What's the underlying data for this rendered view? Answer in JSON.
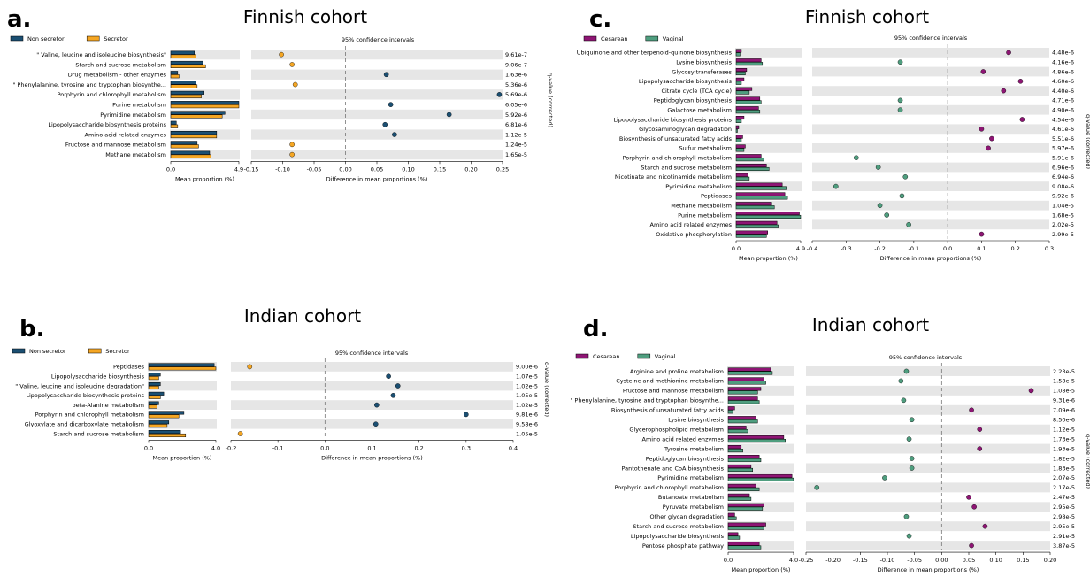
{
  "colors": {
    "non_secretor": "#1b4f72",
    "secretor": "#f5a623",
    "cesarean": "#8e1574",
    "vaginal": "#4f9e7f",
    "band": "#e6e6e6",
    "edge": "#000000"
  },
  "chart_data": [
    {
      "panel": "a.",
      "type": "bar",
      "title": "Finnish cohort",
      "legend": [
        "Non secretor",
        "Secretor"
      ],
      "legend_position": "top-left",
      "categories": [
        "\" Valine, leucine and isoleucine biosynthesis\"",
        "Starch and sucrose metabolism",
        "Drug metabolism - other enzymes",
        "\" Phenylalanine, tyrosine and tryptophan biosynthe...",
        "Porphyrin and chlorophyll metabolism",
        "Purine metabolism",
        "Pyrimidine metabolism",
        "Lipopolysaccharide biosynthesis proteins",
        "Amino acid related enzymes",
        "Fructose and mannose metabolism",
        "Methane metabolism"
      ],
      "series": [
        {
          "name": "Non secretor",
          "values": [
            1.7,
            2.3,
            0.5,
            1.8,
            2.4,
            4.9,
            3.9,
            0.4,
            3.3,
            1.9,
            2.8
          ]
        },
        {
          "name": "Secretor",
          "values": [
            1.8,
            2.5,
            0.6,
            1.9,
            2.2,
            4.9,
            3.7,
            0.5,
            3.3,
            2.0,
            2.9
          ]
        }
      ],
      "bar_xlabel": "Mean proportion (%)",
      "bar_xlim": [
        0,
        4.9
      ],
      "bar_xticks": [
        "0.0",
        "4.9"
      ],
      "diff_title": "95% confidence intervals",
      "diff_xlabel": "Difference in mean proportions (%)",
      "diff_xlim": [
        -0.15,
        0.25
      ],
      "diff_xticks": [
        "-0.15",
        "-0.10",
        "-0.05",
        "0.00",
        "0.05",
        "0.10",
        "0.15",
        "0.20",
        "0.25"
      ],
      "differences": [
        -0.102,
        -0.085,
        0.065,
        -0.08,
        0.245,
        0.072,
        0.165,
        0.063,
        0.078,
        -0.085,
        -0.085
      ],
      "q_label": "q-value (corrected)",
      "q_values": [
        "9.61e-7",
        "9.06e-7",
        "1.63e-6",
        "5.36e-6",
        "5.69e-6",
        "6.05e-6",
        "5.92e-6",
        "6.81e-6",
        "1.12e-5",
        "1.24e-5",
        "1.65e-5"
      ]
    },
    {
      "panel": "b.",
      "type": "bar",
      "title": "Indian cohort",
      "legend": [
        "Non secretor",
        "Secretor"
      ],
      "legend_position": "top-left",
      "categories": [
        "Peptidases",
        "Lipopolysaccharide biosynthesis",
        "\" Valine, leucine and isoleucine degradation\"",
        "Lipopolysaccharide biosynthesis proteins",
        "beta-Alanine metabolism",
        "Porphyrin and chlorophyll metabolism",
        "Glyoxylate and dicarboxylate metabolism",
        "Starch and sucrose metabolism"
      ],
      "series": [
        {
          "name": "Non secretor",
          "values": [
            3.9,
            0.7,
            0.7,
            0.9,
            0.6,
            2.1,
            1.2,
            1.9
          ]
        },
        {
          "name": "Secretor",
          "values": [
            4.0,
            0.6,
            0.6,
            0.7,
            0.5,
            1.8,
            1.1,
            2.2
          ]
        }
      ],
      "bar_xlabel": "Mean proportion (%)",
      "bar_xlim": [
        0,
        4.0
      ],
      "bar_xticks": [
        "0.0",
        "4.0"
      ],
      "diff_title": "95% confidence intervals",
      "diff_xlabel": "Difference in mean proportions (%)",
      "diff_xlim": [
        -0.2,
        0.4
      ],
      "diff_xticks": [
        "-0.2",
        "-0.1",
        "0.0",
        "0.1",
        "0.2",
        "0.3",
        "0.4"
      ],
      "differences": [
        -0.16,
        0.135,
        0.155,
        0.145,
        0.11,
        0.3,
        0.108,
        -0.18
      ],
      "q_label": "q-value (corrected)",
      "q_values": [
        "9.00e-6",
        "1.07e-5",
        "1.02e-5",
        "1.05e-5",
        "1.02e-5",
        "9.81e-6",
        "9.58e-6",
        "1.05e-5"
      ]
    },
    {
      "panel": "c.",
      "type": "bar",
      "title": "Finnish cohort",
      "legend": [
        "Cesarean",
        "Vaginal"
      ],
      "legend_position": "top-left",
      "categories": [
        "Ubiquinone and other terpenoid-quinone biosynthesis",
        "Lysine biosynthesis",
        "Glycosyltransferases",
        "Lipopolysaccharide biosynthesis",
        "Citrate cycle (TCA cycle)",
        "Peptidoglycan biosynthesis",
        "Galactose metabolism",
        "Lipopolysaccharide biosynthesis proteins",
        "Glycosaminoglycan degradation",
        "Biosynthesis of unsaturated fatty acids",
        "Sulfur metabolism",
        "Porphyrin and chlorophyll metabolism",
        "Starch and sucrose metabolism",
        "Nicotinate and nicotinamide metabolism",
        "Pyrimidine metabolism",
        "Peptidases",
        "Methane metabolism",
        "Purine metabolism",
        "Amino acid related enzymes",
        "Oxidative phosphorylation"
      ],
      "series": [
        {
          "name": "Cesarean",
          "values": [
            0.4,
            1.9,
            0.8,
            0.6,
            1.2,
            1.8,
            1.7,
            0.6,
            0.2,
            0.5,
            0.7,
            1.9,
            2.3,
            0.9,
            3.5,
            3.7,
            2.7,
            4.8,
            3.1,
            2.4
          ]
        },
        {
          "name": "Vaginal",
          "values": [
            0.3,
            2.0,
            0.7,
            0.4,
            1.0,
            1.9,
            1.8,
            0.4,
            0.1,
            0.4,
            0.6,
            2.1,
            2.5,
            1.0,
            3.8,
            3.9,
            2.9,
            4.9,
            3.2,
            2.3
          ]
        }
      ],
      "bar_xlabel": "Mean proportion (%)",
      "bar_xlim": [
        0,
        4.9
      ],
      "bar_xticks": [
        "0.0",
        "4.9"
      ],
      "diff_title": "95% confidence intervals",
      "diff_xlabel": "Difference in mean proportions (%)",
      "diff_xlim": [
        -0.4,
        0.3
      ],
      "diff_xticks": [
        "-0.4",
        "-0.3",
        "-0.2",
        "-0.1",
        "0.0",
        "0.1",
        "0.2",
        "0.3"
      ],
      "differences": [
        0.18,
        -0.14,
        0.105,
        0.215,
        0.165,
        -0.14,
        -0.14,
        0.22,
        0.1,
        0.13,
        0.12,
        -0.27,
        -0.205,
        -0.125,
        -0.33,
        -0.135,
        -0.2,
        -0.18,
        -0.115,
        0.1
      ],
      "q_label": "q-value (corrected)",
      "q_values": [
        "4.48e-6",
        "4.16e-6",
        "4.86e-6",
        "4.60e-6",
        "4.40e-6",
        "4.71e-6",
        "4.90e-6",
        "4.54e-6",
        "4.61e-6",
        "5.51e-6",
        "5.97e-6",
        "5.91e-6",
        "6.96e-6",
        "6.94e-6",
        "9.08e-6",
        "9.92e-6",
        "1.04e-5",
        "1.68e-5",
        "2.02e-5",
        "2.99e-5"
      ]
    },
    {
      "panel": "d.",
      "type": "bar",
      "title": "Indian cohort",
      "legend": [
        "Cesarean",
        "Vaginal"
      ],
      "legend_position": "top-left",
      "categories": [
        "Arginine and proline metabolism",
        "Cysteine and methionine metabolism",
        "Fructose and mannose metabolism",
        "\" Phenylalanine, tyrosine and tryptophan biosynthe...",
        "Biosynthesis of unsaturated fatty acids",
        "Lysine biosynthesis",
        "Glycerophospholipid metabolism",
        "Amino acid related enzymes",
        "Tyrosine metabolism",
        "Peptidoglycan biosynthesis",
        "Pantothenate and CoA biosynthesis",
        "Pyrimidine metabolism",
        "Porphyrin and chlorophyll metabolism",
        "Butanoate metabolism",
        "Pyruvate metabolism",
        "Other glycan degradation",
        "Starch and sucrose metabolism",
        "Lipopolysaccharide biosynthesis",
        "Pentose phosphate pathway"
      ],
      "series": [
        {
          "name": "Cesarean",
          "values": [
            2.6,
            2.2,
            2.0,
            1.8,
            0.4,
            1.7,
            1.1,
            3.4,
            0.8,
            1.9,
            1.4,
            3.9,
            1.7,
            1.3,
            2.2,
            0.4,
            2.3,
            0.6,
            1.9
          ]
        },
        {
          "name": "Vaginal",
          "values": [
            2.7,
            2.3,
            1.8,
            1.9,
            0.3,
            1.8,
            1.2,
            3.5,
            0.9,
            2.0,
            1.5,
            4.0,
            1.9,
            1.4,
            2.1,
            0.5,
            2.2,
            0.7,
            2.0
          ]
        }
      ],
      "bar_xlabel": "Mean proportion (%)",
      "bar_xlim": [
        0,
        4.0
      ],
      "bar_xticks": [
        "0.0",
        "4.0"
      ],
      "diff_title": "95% confidence intervals",
      "diff_xlabel": "Difference in mean proportions (%)",
      "diff_xlim": [
        -0.25,
        0.2
      ],
      "diff_xticks": [
        "-0.25",
        "-0.20",
        "-0.15",
        "-0.10",
        "-0.05",
        "0.00",
        "0.05",
        "0.10",
        "0.15",
        "0.20"
      ],
      "differences": [
        -0.065,
        -0.075,
        0.165,
        -0.07,
        0.055,
        -0.055,
        0.07,
        -0.06,
        0.07,
        -0.055,
        -0.055,
        -0.105,
        -0.23,
        0.05,
        0.06,
        -0.065,
        0.08,
        -0.06,
        0.055
      ],
      "q_label": "q-value (corrected)",
      "q_values": [
        "2.23e-5",
        "1.58e-5",
        "1.08e-5",
        "9.31e-6",
        "7.09e-6",
        "8.50e-6",
        "1.12e-5",
        "1.73e-5",
        "1.93e-5",
        "1.82e-5",
        "1.83e-5",
        "2.07e-5",
        "2.17e-5",
        "2.47e-5",
        "2.95e-5",
        "2.98e-5",
        "2.95e-5",
        "2.91e-5",
        "3.87e-5"
      ]
    }
  ]
}
